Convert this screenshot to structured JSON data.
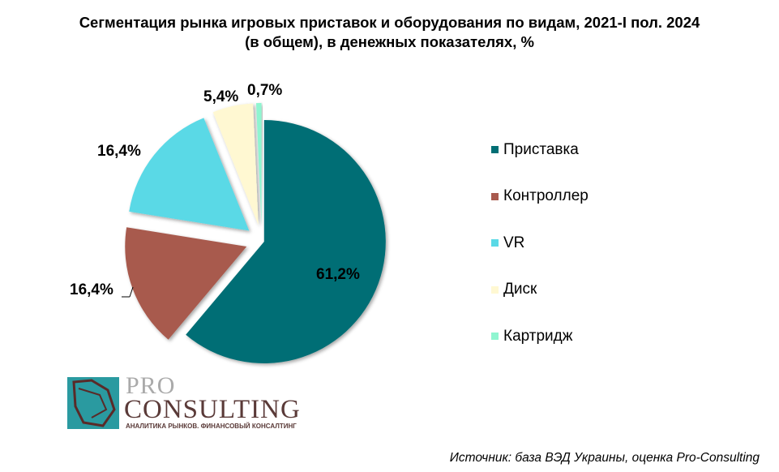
{
  "chart_data": {
    "type": "pie",
    "title": "Сегментация рынка игровых приставок и оборудования по видам, 2021-I пол. 2024 (в общем), в денежных показателях, %",
    "title_lines": [
      "Сегментация рынка игровых приставок и оборудования по видам, 2021-I пол. 2024",
      "(в общем), в денежных показателях, %"
    ],
    "categories": [
      "Приставка",
      "Контроллер",
      "VR",
      "Диск",
      "Картридж"
    ],
    "values": [
      61.2,
      16.4,
      16.4,
      5.4,
      0.7
    ],
    "data_labels": [
      "61,2%",
      "16,4%",
      "16,4%",
      "5,4%",
      "0,7%"
    ],
    "colors": [
      "#006e74",
      "#a85a4e",
      "#5ad9e6",
      "#fff8d2",
      "#8ff5d0"
    ],
    "legend_position": "right"
  },
  "source": "Источник: база ВЭД Украины, оценка Pro-Consulting",
  "logo": {
    "pro": "PRO",
    "consulting": "CONSULTING",
    "tagline": "АНАЛИТИКА РЫНКОВ. ФИНАНСОВЫЙ КОНСАЛТИНГ"
  }
}
